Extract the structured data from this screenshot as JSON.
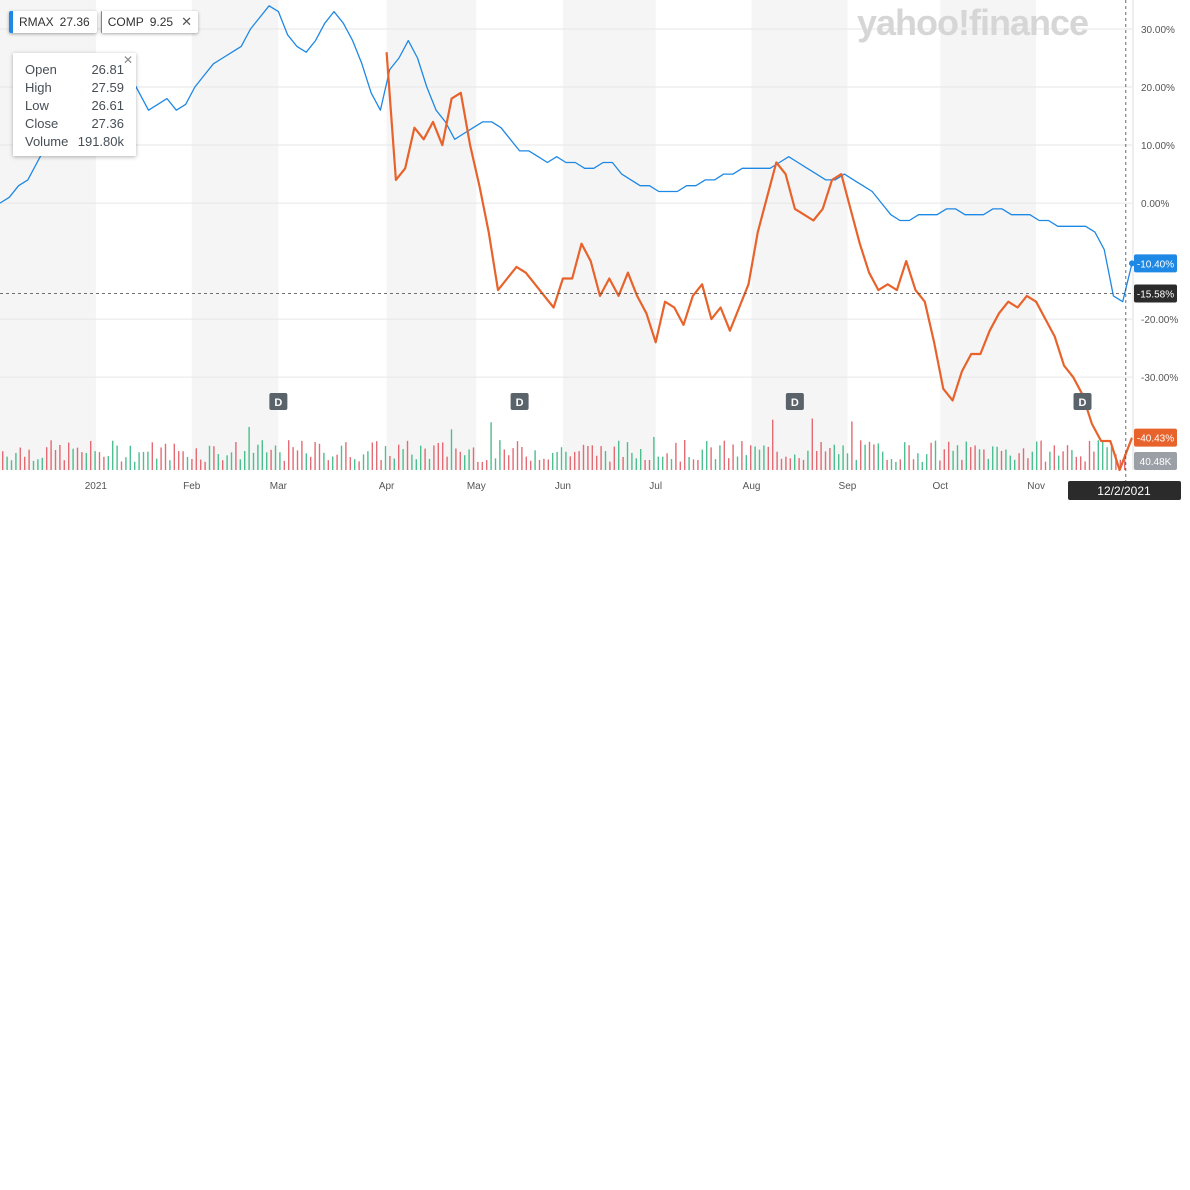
{
  "brand": "yahoo!finance",
  "legend": [
    {
      "symbol": "RMAX",
      "value": "27.36",
      "color": "#1e88e5"
    },
    {
      "symbol": "COMP",
      "value": "9.25",
      "color": "#e8632b"
    }
  ],
  "tooltip": {
    "close_icon": "close-icon",
    "rows": [
      {
        "label": "Open",
        "value": "26.81"
      },
      {
        "label": "High",
        "value": "27.59"
      },
      {
        "label": "Low",
        "value": "26.61"
      },
      {
        "label": "Close",
        "value": "27.36"
      },
      {
        "label": "Volume",
        "value": "191.80k"
      }
    ]
  },
  "crosshair": {
    "date_label": "12/2/2021",
    "level_label": "-15.58%",
    "level": -15.58
  },
  "end_labels": {
    "rmax": "-10.40%",
    "comp": "-40.43%",
    "volume": "40.48K"
  },
  "colors": {
    "rmax": "#1e88e5",
    "comp": "#e8632b",
    "up": "#2fb47c",
    "down": "#e0515c",
    "band": "#f5f5f5"
  },
  "dividends": [
    {
      "label": "D",
      "date": "2021-03-01"
    },
    {
      "label": "D",
      "date": "2021-05-18"
    },
    {
      "label": "D",
      "date": "2021-08-15"
    },
    {
      "label": "D",
      "date": "2021-11-16"
    }
  ],
  "chart_data": {
    "type": "line",
    "y_unit": "%",
    "ylim": [
      -46,
      35
    ],
    "xlim": [
      "2020-12-01",
      "2021-12-02"
    ],
    "y_ticks": [
      "30.00%",
      "20.00%",
      "10.00%",
      "0.00%",
      "-20.00%",
      "-30.00%"
    ],
    "y_tick_values": [
      30,
      20,
      10,
      0,
      -20,
      -30
    ],
    "x_ticks": [
      {
        "label": "2021",
        "date": "2021-01-01"
      },
      {
        "label": "Feb",
        "date": "2021-02-01"
      },
      {
        "label": "Mar",
        "date": "2021-03-01"
      },
      {
        "label": "Apr",
        "date": "2021-04-05"
      },
      {
        "label": "May",
        "date": "2021-05-04"
      },
      {
        "label": "Jun",
        "date": "2021-06-01"
      },
      {
        "label": "Jul",
        "date": "2021-07-01"
      },
      {
        "label": "Aug",
        "date": "2021-08-01"
      },
      {
        "label": "Sep",
        "date": "2021-09-01"
      },
      {
        "label": "Oct",
        "date": "2021-10-01"
      },
      {
        "label": "Nov",
        "date": "2021-11-01"
      }
    ],
    "grid": true,
    "series": [
      {
        "name": "RMAX",
        "points": [
          [
            "2020-12-01",
            0
          ],
          [
            "2020-12-04",
            1
          ],
          [
            "2020-12-07",
            3
          ],
          [
            "2020-12-10",
            4
          ],
          [
            "2020-12-13",
            7
          ],
          [
            "2020-12-16",
            10
          ],
          [
            "2020-12-19",
            12
          ],
          [
            "2020-12-22",
            14
          ],
          [
            "2020-12-25",
            15
          ],
          [
            "2020-12-28",
            14
          ],
          [
            "2020-12-31",
            13
          ],
          [
            "2021-01-03",
            14
          ],
          [
            "2021-01-06",
            17
          ],
          [
            "2021-01-09",
            20
          ],
          [
            "2021-01-12",
            22
          ],
          [
            "2021-01-15",
            19
          ],
          [
            "2021-01-18",
            16
          ],
          [
            "2021-01-21",
            17
          ],
          [
            "2021-01-24",
            18
          ],
          [
            "2021-01-27",
            16
          ],
          [
            "2021-01-30",
            17
          ],
          [
            "2021-02-02",
            20
          ],
          [
            "2021-02-05",
            22
          ],
          [
            "2021-02-08",
            24
          ],
          [
            "2021-02-11",
            25
          ],
          [
            "2021-02-14",
            26
          ],
          [
            "2021-02-17",
            27
          ],
          [
            "2021-02-20",
            30
          ],
          [
            "2021-02-23",
            32
          ],
          [
            "2021-02-26",
            34
          ],
          [
            "2021-03-01",
            33
          ],
          [
            "2021-03-04",
            29
          ],
          [
            "2021-03-07",
            27
          ],
          [
            "2021-03-10",
            26
          ],
          [
            "2021-03-13",
            28
          ],
          [
            "2021-03-16",
            31
          ],
          [
            "2021-03-19",
            33
          ],
          [
            "2021-03-22",
            31
          ],
          [
            "2021-03-25",
            28
          ],
          [
            "2021-03-28",
            24
          ],
          [
            "2021-03-31",
            19
          ],
          [
            "2021-04-03",
            16
          ],
          [
            "2021-04-06",
            23
          ],
          [
            "2021-04-09",
            25
          ],
          [
            "2021-04-12",
            28
          ],
          [
            "2021-04-15",
            25
          ],
          [
            "2021-04-18",
            20
          ],
          [
            "2021-04-21",
            16
          ],
          [
            "2021-04-24",
            14
          ],
          [
            "2021-04-27",
            11
          ],
          [
            "2021-04-30",
            12
          ],
          [
            "2021-05-03",
            13
          ],
          [
            "2021-05-06",
            14
          ],
          [
            "2021-05-09",
            14
          ],
          [
            "2021-05-12",
            13
          ],
          [
            "2021-05-15",
            11
          ],
          [
            "2021-05-18",
            9
          ],
          [
            "2021-05-21",
            9
          ],
          [
            "2021-05-24",
            8
          ],
          [
            "2021-05-27",
            7
          ],
          [
            "2021-05-30",
            8
          ],
          [
            "2021-06-02",
            7
          ],
          [
            "2021-06-05",
            7
          ],
          [
            "2021-06-08",
            6
          ],
          [
            "2021-06-11",
            6
          ],
          [
            "2021-06-14",
            7
          ],
          [
            "2021-06-17",
            7
          ],
          [
            "2021-06-20",
            5
          ],
          [
            "2021-06-23",
            4
          ],
          [
            "2021-06-26",
            3
          ],
          [
            "2021-06-29",
            3
          ],
          [
            "2021-07-02",
            2
          ],
          [
            "2021-07-05",
            2
          ],
          [
            "2021-07-08",
            2
          ],
          [
            "2021-07-11",
            3
          ],
          [
            "2021-07-14",
            3
          ],
          [
            "2021-07-17",
            4
          ],
          [
            "2021-07-20",
            4
          ],
          [
            "2021-07-23",
            5
          ],
          [
            "2021-07-26",
            5
          ],
          [
            "2021-07-29",
            6
          ],
          [
            "2021-08-01",
            6
          ],
          [
            "2021-08-04",
            6
          ],
          [
            "2021-08-07",
            6
          ],
          [
            "2021-08-10",
            7
          ],
          [
            "2021-08-13",
            8
          ],
          [
            "2021-08-16",
            7
          ],
          [
            "2021-08-19",
            6
          ],
          [
            "2021-08-22",
            5
          ],
          [
            "2021-08-25",
            4
          ],
          [
            "2021-08-28",
            4
          ],
          [
            "2021-08-31",
            5
          ],
          [
            "2021-09-03",
            4
          ],
          [
            "2021-09-06",
            3
          ],
          [
            "2021-09-09",
            2
          ],
          [
            "2021-09-12",
            0
          ],
          [
            "2021-09-15",
            -2
          ],
          [
            "2021-09-18",
            -3
          ],
          [
            "2021-09-21",
            -3
          ],
          [
            "2021-09-24",
            -2
          ],
          [
            "2021-09-27",
            -2
          ],
          [
            "2021-09-30",
            -2
          ],
          [
            "2021-10-03",
            -1
          ],
          [
            "2021-10-06",
            -1
          ],
          [
            "2021-10-09",
            -2
          ],
          [
            "2021-10-12",
            -2
          ],
          [
            "2021-10-15",
            -2
          ],
          [
            "2021-10-18",
            -1
          ],
          [
            "2021-10-21",
            -1
          ],
          [
            "2021-10-24",
            -2
          ],
          [
            "2021-10-27",
            -2
          ],
          [
            "2021-10-30",
            -2
          ],
          [
            "2021-11-02",
            -3
          ],
          [
            "2021-11-05",
            -3
          ],
          [
            "2021-11-08",
            -4
          ],
          [
            "2021-11-11",
            -4
          ],
          [
            "2021-11-14",
            -4
          ],
          [
            "2021-11-17",
            -4
          ],
          [
            "2021-11-20",
            -5
          ],
          [
            "2021-11-23",
            -8
          ],
          [
            "2021-11-26",
            -16
          ],
          [
            "2021-11-29",
            -17
          ],
          [
            "2021-12-02",
            -10.4
          ]
        ]
      },
      {
        "name": "COMP",
        "points": [
          [
            "2021-04-05",
            26
          ],
          [
            "2021-04-08",
            4
          ],
          [
            "2021-04-11",
            6
          ],
          [
            "2021-04-14",
            13
          ],
          [
            "2021-04-17",
            11
          ],
          [
            "2021-04-20",
            14
          ],
          [
            "2021-04-23",
            10
          ],
          [
            "2021-04-26",
            18
          ],
          [
            "2021-04-29",
            19
          ],
          [
            "2021-05-02",
            10
          ],
          [
            "2021-05-05",
            3
          ],
          [
            "2021-05-08",
            -5
          ],
          [
            "2021-05-11",
            -15
          ],
          [
            "2021-05-14",
            -13
          ],
          [
            "2021-05-17",
            -11
          ],
          [
            "2021-05-20",
            -12
          ],
          [
            "2021-05-23",
            -14
          ],
          [
            "2021-05-26",
            -16
          ],
          [
            "2021-05-29",
            -18
          ],
          [
            "2021-06-01",
            -13
          ],
          [
            "2021-06-04",
            -13
          ],
          [
            "2021-06-07",
            -7
          ],
          [
            "2021-06-10",
            -10
          ],
          [
            "2021-06-13",
            -16
          ],
          [
            "2021-06-16",
            -13
          ],
          [
            "2021-06-19",
            -16
          ],
          [
            "2021-06-22",
            -12
          ],
          [
            "2021-06-25",
            -16
          ],
          [
            "2021-06-28",
            -19
          ],
          [
            "2021-07-01",
            -24
          ],
          [
            "2021-07-04",
            -17
          ],
          [
            "2021-07-07",
            -18
          ],
          [
            "2021-07-10",
            -21
          ],
          [
            "2021-07-13",
            -16
          ],
          [
            "2021-07-16",
            -14
          ],
          [
            "2021-07-19",
            -20
          ],
          [
            "2021-07-22",
            -18
          ],
          [
            "2021-07-25",
            -22
          ],
          [
            "2021-07-28",
            -18
          ],
          [
            "2021-07-31",
            -14
          ],
          [
            "2021-08-03",
            -5
          ],
          [
            "2021-08-06",
            1
          ],
          [
            "2021-08-09",
            7
          ],
          [
            "2021-08-12",
            5
          ],
          [
            "2021-08-15",
            -1
          ],
          [
            "2021-08-18",
            -2
          ],
          [
            "2021-08-21",
            -3
          ],
          [
            "2021-08-24",
            -1
          ],
          [
            "2021-08-27",
            4
          ],
          [
            "2021-08-30",
            5
          ],
          [
            "2021-09-02",
            -1
          ],
          [
            "2021-09-05",
            -7
          ],
          [
            "2021-09-08",
            -12
          ],
          [
            "2021-09-11",
            -15
          ],
          [
            "2021-09-14",
            -14
          ],
          [
            "2021-09-17",
            -15
          ],
          [
            "2021-09-20",
            -10
          ],
          [
            "2021-09-23",
            -15
          ],
          [
            "2021-09-26",
            -17
          ],
          [
            "2021-09-29",
            -24
          ],
          [
            "2021-10-02",
            -32
          ],
          [
            "2021-10-05",
            -34
          ],
          [
            "2021-10-08",
            -29
          ],
          [
            "2021-10-11",
            -26
          ],
          [
            "2021-10-14",
            -26
          ],
          [
            "2021-10-17",
            -22
          ],
          [
            "2021-10-20",
            -19
          ],
          [
            "2021-10-23",
            -17
          ],
          [
            "2021-10-26",
            -18
          ],
          [
            "2021-10-29",
            -16
          ],
          [
            "2021-11-01",
            -17
          ],
          [
            "2021-11-04",
            -20
          ],
          [
            "2021-11-07",
            -23
          ],
          [
            "2021-11-10",
            -28
          ],
          [
            "2021-11-13",
            -30
          ],
          [
            "2021-11-16",
            -33
          ],
          [
            "2021-11-19",
            -38
          ],
          [
            "2021-11-22",
            -41
          ],
          [
            "2021-11-25",
            -41
          ],
          [
            "2021-11-28",
            -46
          ],
          [
            "2021-12-02",
            -40.43
          ]
        ]
      }
    ]
  }
}
